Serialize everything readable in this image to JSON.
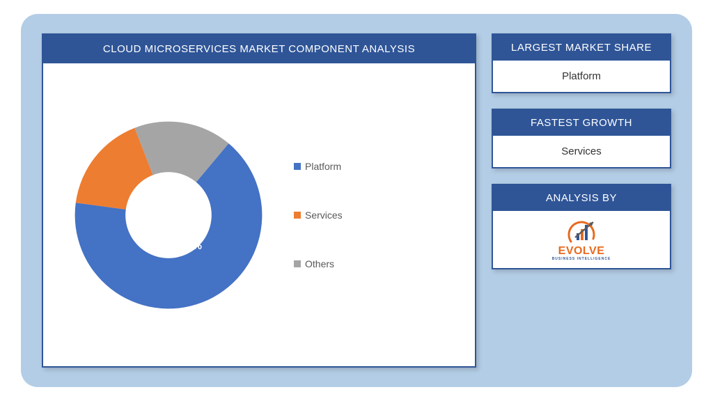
{
  "frame": {
    "bg": "#b3cde6",
    "border_radius": 24
  },
  "card": {
    "border_color": "#2f5597",
    "header_bg": "#2f5597",
    "header_text_color": "#ffffff",
    "body_bg": "#ffffff"
  },
  "chart": {
    "title": "CLOUD MICROSERVICES MARKET COMPONENT ANALYSIS",
    "type": "donut",
    "inner_radius_ratio": 0.46,
    "start_angle_deg": 40,
    "slices": [
      {
        "label": "Platform",
        "value": 66,
        "color": "#4472c4"
      },
      {
        "label": "Services",
        "value": 17,
        "color": "#ed7d31"
      },
      {
        "label": "Others",
        "value": 17,
        "color": "#a5a5a5"
      }
    ],
    "center_fill": "#ffffff",
    "value_label": {
      "text": "66%",
      "color": "#ffffff",
      "fontsize": 15,
      "fontweight": 700
    },
    "legend": {
      "items": [
        {
          "marker_color": "#4472c4",
          "label": "Platform"
        },
        {
          "marker_color": "#ed7d31",
          "label": "Services"
        },
        {
          "marker_color": "#a5a5a5",
          "label": "Others"
        }
      ],
      "fontsize": 14,
      "text_color": "#595959"
    }
  },
  "sidebar": {
    "market_share": {
      "title": "LARGEST MARKET SHARE",
      "value": "Platform"
    },
    "growth": {
      "title": "FASTEST GROWTH",
      "value": "Services"
    },
    "analysis_by": {
      "title": "ANALYSIS BY",
      "brand_name": "EVOLVE",
      "brand_sub": "BUSINESS INTELLIGENCE",
      "brand_color": "#e86a1f",
      "brand_sub_color": "#2f5597",
      "ring_color": "#e86a1f",
      "bars": [
        "#2f5597",
        "#e86a1f",
        "#2f5597"
      ],
      "arrow_color": "#5a5a5a"
    }
  }
}
